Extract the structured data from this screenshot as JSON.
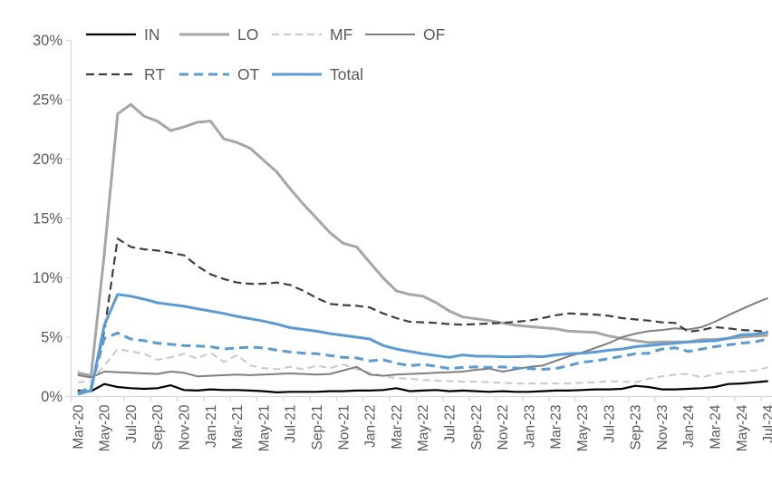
{
  "chart_data": {
    "type": "line",
    "title": "",
    "xlabel": "",
    "ylabel": "",
    "ylim": [
      0,
      30
    ],
    "grid": false,
    "legend_position": "top",
    "axis_text_color": "#595959",
    "axis_line_color": "#d9d9d9",
    "y_tick_labels": [
      "0%",
      "5%",
      "10%",
      "15%",
      "20%",
      "25%",
      "30%"
    ],
    "x_label_every_n_months": 2,
    "x": [
      "Mar-20",
      "Apr-20",
      "May-20",
      "Jun-20",
      "Jul-20",
      "Aug-20",
      "Sep-20",
      "Oct-20",
      "Nov-20",
      "Dec-20",
      "Jan-21",
      "Feb-21",
      "Mar-21",
      "Apr-21",
      "May-21",
      "Jun-21",
      "Jul-21",
      "Aug-21",
      "Sep-21",
      "Oct-21",
      "Nov-21",
      "Dec-21",
      "Jan-22",
      "Feb-22",
      "Mar-22",
      "Apr-22",
      "May-22",
      "Jun-22",
      "Jul-22",
      "Aug-22",
      "Sep-22",
      "Oct-22",
      "Nov-22",
      "Dec-22",
      "Jan-23",
      "Feb-23",
      "Mar-23",
      "Apr-23",
      "May-23",
      "Jun-23",
      "Jul-23",
      "Aug-23",
      "Sep-23",
      "Oct-23",
      "Nov-23",
      "Dec-23",
      "Jan-24",
      "Feb-24",
      "Mar-24",
      "Apr-24",
      "May-24",
      "Jun-24",
      "Jul-24"
    ],
    "x_tick_labels": [
      "Mar-20",
      "May-20",
      "Jul-20",
      "Sep-20",
      "Nov-20",
      "Jan-21",
      "Mar-21",
      "May-21",
      "Jul-21",
      "Sep-21",
      "Nov-21",
      "Jan-22",
      "Mar-22",
      "May-22",
      "Jul-22",
      "Sep-22",
      "Nov-22",
      "Jan-23",
      "Mar-23",
      "May-23",
      "Jul-23",
      "Sep-23",
      "Nov-23",
      "Jan-24",
      "Mar-24",
      "May-24",
      "Jul-24"
    ],
    "series": [
      {
        "name": "IN",
        "color": "#000000",
        "width": 2.2,
        "dash": null,
        "values": [
          0.5,
          0.45,
          1.05,
          0.8,
          0.7,
          0.65,
          0.7,
          0.95,
          0.55,
          0.5,
          0.6,
          0.55,
          0.55,
          0.5,
          0.45,
          0.35,
          0.4,
          0.4,
          0.4,
          0.45,
          0.45,
          0.5,
          0.5,
          0.55,
          0.7,
          0.45,
          0.5,
          0.55,
          0.45,
          0.5,
          0.45,
          0.4,
          0.45,
          0.4,
          0.4,
          0.45,
          0.5,
          0.5,
          0.55,
          0.6,
          0.6,
          0.65,
          0.9,
          0.8,
          0.6,
          0.6,
          0.65,
          0.7,
          0.8,
          1.05,
          1.1,
          1.2,
          1.3
        ]
      },
      {
        "name": "LO",
        "color": "#a6a6a6",
        "width": 3,
        "dash": null,
        "values": [
          2.0,
          1.75,
          12.0,
          23.8,
          24.6,
          23.6,
          23.2,
          22.4,
          22.7,
          23.1,
          23.2,
          21.7,
          21.4,
          20.9,
          19.9,
          18.9,
          17.5,
          16.2,
          15.0,
          13.8,
          12.9,
          12.6,
          11.3,
          10.0,
          8.9,
          8.6,
          8.45,
          7.9,
          7.2,
          6.7,
          6.55,
          6.4,
          6.2,
          6.0,
          5.9,
          5.8,
          5.7,
          5.5,
          5.45,
          5.4,
          5.1,
          4.9,
          4.7,
          4.55,
          4.6,
          4.6,
          4.6,
          4.8,
          4.8,
          4.9,
          5.0,
          5.1,
          5.15
        ]
      },
      {
        "name": "MF",
        "color": "#c9c9c9",
        "width": 2,
        "dash": "8 5",
        "values": [
          1.2,
          1.3,
          2.6,
          4.0,
          3.8,
          3.6,
          3.1,
          3.3,
          3.6,
          3.2,
          3.7,
          2.9,
          3.5,
          2.6,
          2.4,
          2.3,
          2.5,
          2.3,
          2.6,
          2.4,
          2.7,
          2.3,
          2.0,
          1.75,
          1.55,
          1.5,
          1.4,
          1.35,
          1.3,
          1.25,
          1.25,
          1.2,
          1.15,
          1.1,
          1.1,
          1.1,
          1.1,
          1.1,
          1.15,
          1.2,
          1.3,
          1.25,
          1.2,
          1.5,
          1.7,
          1.85,
          1.9,
          1.6,
          1.9,
          2.05,
          2.1,
          2.2,
          2.45
        ]
      },
      {
        "name": "OF",
        "color": "#7f7f7f",
        "width": 2,
        "dash": null,
        "values": [
          1.8,
          1.6,
          2.1,
          2.05,
          2.0,
          1.95,
          1.9,
          2.1,
          2.0,
          1.7,
          1.75,
          1.8,
          1.85,
          1.8,
          1.85,
          1.9,
          1.95,
          1.9,
          1.85,
          1.9,
          2.2,
          2.5,
          1.85,
          1.75,
          1.85,
          1.9,
          1.95,
          2.0,
          2.05,
          2.1,
          2.25,
          2.35,
          2.1,
          2.3,
          2.5,
          2.6,
          3.0,
          3.4,
          3.7,
          4.1,
          4.5,
          5.0,
          5.3,
          5.5,
          5.6,
          5.75,
          5.65,
          5.85,
          6.3,
          6.85,
          7.35,
          7.85,
          8.3
        ]
      },
      {
        "name": "RT",
        "color": "#3f3f3f",
        "width": 2.2,
        "dash": "9 5",
        "values": [
          0.4,
          0.7,
          5.5,
          13.3,
          12.6,
          12.4,
          12.3,
          12.1,
          11.9,
          11.0,
          10.3,
          9.9,
          9.6,
          9.5,
          9.5,
          9.6,
          9.4,
          8.9,
          8.3,
          7.8,
          7.7,
          7.65,
          7.5,
          7.0,
          6.6,
          6.3,
          6.25,
          6.2,
          6.1,
          6.05,
          6.1,
          6.15,
          6.2,
          6.3,
          6.4,
          6.6,
          6.85,
          7.0,
          6.95,
          6.9,
          6.8,
          6.6,
          6.5,
          6.4,
          6.25,
          6.2,
          5.45,
          5.6,
          5.85,
          5.75,
          5.6,
          5.55,
          5.45
        ]
      },
      {
        "name": "OT",
        "color": "#5b9bd5",
        "width": 3,
        "dash": "10 6",
        "values": [
          0.3,
          0.8,
          4.9,
          5.35,
          4.85,
          4.7,
          4.5,
          4.4,
          4.3,
          4.25,
          4.2,
          4.0,
          4.1,
          4.15,
          4.1,
          3.9,
          3.75,
          3.65,
          3.6,
          3.45,
          3.3,
          3.25,
          3.0,
          3.1,
          2.8,
          2.6,
          2.7,
          2.55,
          2.35,
          2.45,
          2.5,
          2.45,
          2.5,
          2.4,
          2.35,
          2.3,
          2.35,
          2.6,
          2.9,
          3.0,
          3.2,
          3.4,
          3.6,
          3.65,
          4.0,
          4.1,
          3.8,
          4.0,
          4.2,
          4.35,
          4.5,
          4.6,
          4.85
        ]
      },
      {
        "name": "Total",
        "color": "#5b9bd5",
        "width": 3,
        "dash": null,
        "values": [
          0.2,
          0.5,
          6.0,
          8.6,
          8.45,
          8.2,
          7.9,
          7.75,
          7.6,
          7.4,
          7.2,
          7.0,
          6.75,
          6.55,
          6.35,
          6.1,
          5.8,
          5.65,
          5.5,
          5.3,
          5.15,
          5.0,
          4.85,
          4.3,
          4.0,
          3.8,
          3.6,
          3.45,
          3.3,
          3.5,
          3.4,
          3.4,
          3.35,
          3.35,
          3.4,
          3.35,
          3.5,
          3.6,
          3.65,
          3.75,
          3.9,
          4.0,
          4.2,
          4.3,
          4.4,
          4.5,
          4.6,
          4.65,
          4.7,
          4.9,
          5.2,
          5.25,
          5.4
        ]
      }
    ],
    "legend_rows": [
      [
        "IN",
        "LO",
        "MF",
        "OF"
      ],
      [
        "RT",
        "OT",
        "Total"
      ]
    ]
  }
}
